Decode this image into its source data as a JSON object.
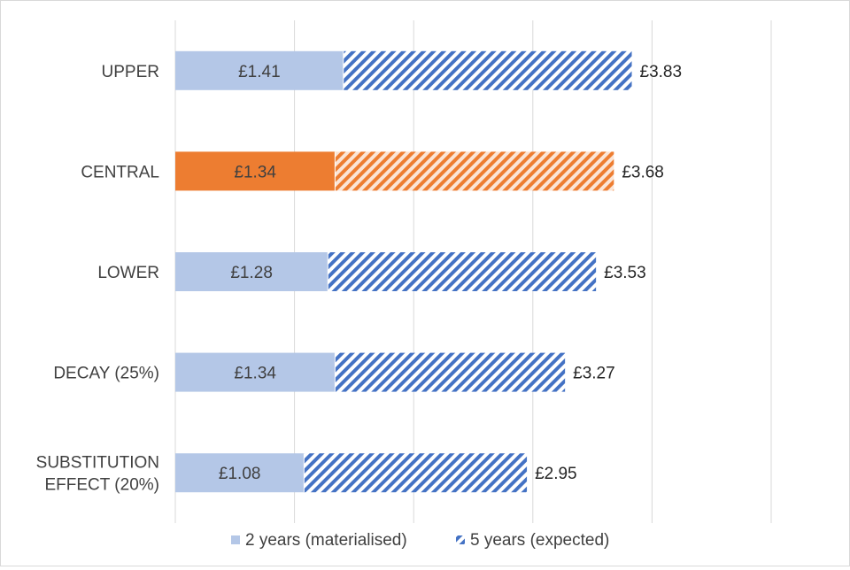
{
  "chart_data": {
    "type": "bar",
    "orientation": "horizontal",
    "stacked": true,
    "categories": [
      "UPPER",
      "CENTRAL",
      "LOWER",
      "DECAY (25%)",
      [
        "SUBSTITUTION",
        "EFFECT (20%)"
      ]
    ],
    "series": [
      {
        "name": "2 years (materialised)",
        "values": [
          1.41,
          1.34,
          1.28,
          1.34,
          1.08
        ],
        "labels": [
          "£1.41",
          "£1.34",
          "£1.28",
          "£1.34",
          "£1.08"
        ],
        "fill": "solid"
      },
      {
        "name": "5 years (expected)",
        "totals": [
          3.83,
          3.68,
          3.53,
          3.27,
          2.95
        ],
        "labels": [
          "£3.83",
          "£3.68",
          "£3.53",
          "£3.27",
          "£2.95"
        ],
        "fill": "hatched"
      }
    ],
    "highlight_index": 1,
    "xlim": [
      0,
      5
    ],
    "x_gridlines": true,
    "x_tick_labels_shown": false,
    "legend_position": "bottom",
    "colors": {
      "base_fill": "#b4c7e7",
      "hatch_stripe": "#4472c4",
      "hatch_bg": "#ffffff",
      "highlight_fill": "#ed7d31",
      "highlight_hatch_stripe": "#ed7d31",
      "highlight_hatch_bg": "#fbe5d6",
      "gridline": "#d9d9d9"
    }
  }
}
